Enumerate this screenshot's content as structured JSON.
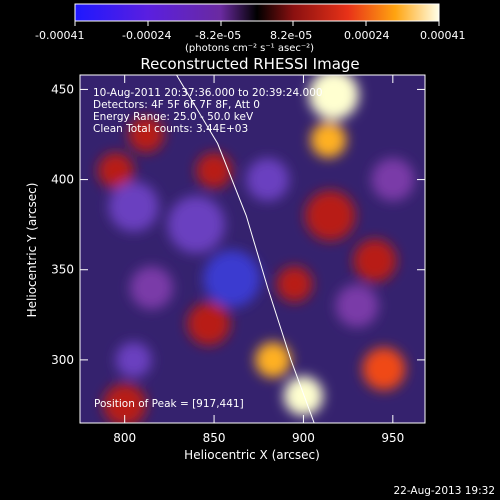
{
  "chart_data": {
    "type": "heatmap",
    "title": "Reconstructed RHESSI Image",
    "xlabel": "Heliocentric X (arcsec)",
    "ylabel": "Heliocentric Y (arcsec)",
    "xlim": [
      775,
      968
    ],
    "ylim": [
      265,
      458
    ],
    "xticks": [
      "800",
      "850",
      "900",
      "950"
    ],
    "yticks": [
      "300",
      "350",
      "400",
      "450"
    ],
    "colorbar": {
      "ticks": [
        "-0.00041",
        "-0.00024",
        "-8.2e-05",
        "8.2e-05",
        "0.00024",
        "0.00041"
      ],
      "units": "(photons cm⁻² s⁻¹ asec⁻²)",
      "range": [
        -0.00041,
        0.00041
      ]
    },
    "annotations": [
      "10-Aug-2011 20:37:36.000 to 20:39:24.000",
      "Detectors: 4F 5F 6F 7F 8F, Att 0",
      "Energy Range: 25.0 - 50.0 keV",
      "Clean     Total counts: 3.44E+03"
    ],
    "peak_label": "Position of Peak = [917,441]",
    "peak": [
      917,
      441
    ],
    "limb_curve": [
      [
        829,
        458
      ],
      [
        852,
        420
      ],
      [
        868,
        380
      ],
      [
        880,
        340
      ],
      [
        893,
        300
      ],
      [
        906,
        265
      ]
    ],
    "sources": [
      {
        "x": 917,
        "y": 447,
        "r": 14,
        "v": 0.00041
      },
      {
        "x": 914,
        "y": 422,
        "r": 10,
        "v": 0.0003
      },
      {
        "x": 900,
        "y": 280,
        "r": 11,
        "v": 0.00036
      },
      {
        "x": 883,
        "y": 300,
        "r": 10,
        "v": 0.00028
      },
      {
        "x": 945,
        "y": 295,
        "r": 12,
        "v": 0.00018
      },
      {
        "x": 800,
        "y": 275,
        "r": 12,
        "v": 0.00015
      },
      {
        "x": 847,
        "y": 320,
        "r": 12,
        "v": 0.00014
      },
      {
        "x": 915,
        "y": 380,
        "r": 14,
        "v": 0.00012
      },
      {
        "x": 940,
        "y": 355,
        "r": 12,
        "v": 0.0001
      },
      {
        "x": 850,
        "y": 405,
        "r": 10,
        "v": 0.0001
      },
      {
        "x": 812,
        "y": 425,
        "r": 10,
        "v": 8e-05
      },
      {
        "x": 795,
        "y": 405,
        "r": 10,
        "v": 9e-05
      },
      {
        "x": 895,
        "y": 342,
        "r": 10,
        "v": 0.00011
      },
      {
        "x": 860,
        "y": 345,
        "r": 16,
        "v": -0.00028
      },
      {
        "x": 840,
        "y": 375,
        "r": 16,
        "v": -0.00022
      },
      {
        "x": 805,
        "y": 385,
        "r": 14,
        "v": -0.0002
      },
      {
        "x": 815,
        "y": 340,
        "r": 12,
        "v": -0.00014
      },
      {
        "x": 805,
        "y": 300,
        "r": 10,
        "v": -0.0002
      },
      {
        "x": 880,
        "y": 400,
        "r": 12,
        "v": -0.00016
      },
      {
        "x": 930,
        "y": 330,
        "r": 12,
        "v": -0.00014
      },
      {
        "x": 950,
        "y": 400,
        "r": 12,
        "v": -0.00012
      }
    ]
  },
  "footer": {
    "timestamp": "22-Aug-2013 19:32"
  }
}
